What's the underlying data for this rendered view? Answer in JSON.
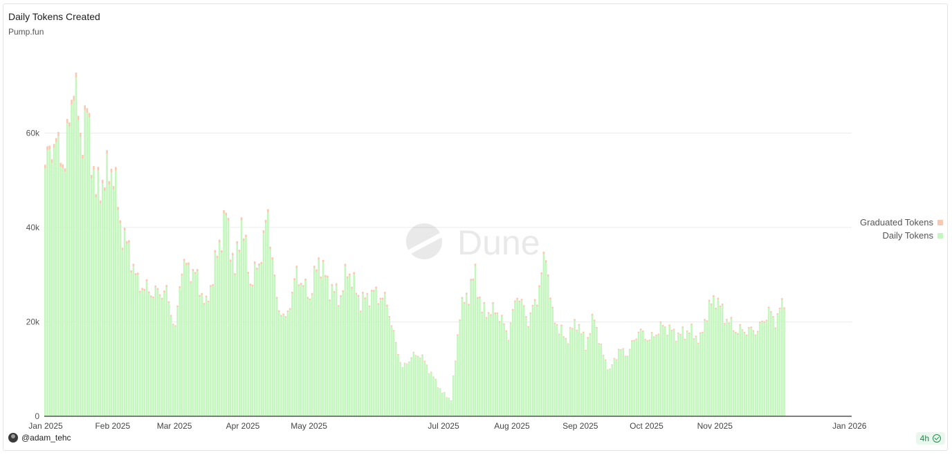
{
  "chart": {
    "title": "Daily Tokens Created",
    "subtitle": "Pump.fun",
    "watermark": "Dune"
  },
  "footer": {
    "author": "@adam_tehc",
    "refresh_label": "4h"
  },
  "colors": {
    "daily": "#c3f7bd",
    "graduated": "#f7c9b0",
    "grid": "#ececec",
    "axis": "#333333"
  },
  "chart_data": {
    "type": "bar",
    "stacked": true,
    "x_labels": [
      "Jan 2025",
      "Feb 2025",
      "Mar 2025",
      "Apr 2025",
      "May 2025",
      "Jul 2025",
      "Aug 2025",
      "Sep 2025",
      "Oct 2025",
      "Nov 2025",
      "Jan 2026"
    ],
    "y_ticks": [
      "0",
      "20k",
      "40k",
      "60k"
    ],
    "ylim": [
      0,
      75000
    ],
    "grid": true,
    "legend_position": "right",
    "series": [
      {
        "name": "Graduated Tokens",
        "color": "#f7c9b0",
        "values_description": "approx. 1-2% of daily tokens"
      },
      {
        "name": "Daily Tokens",
        "color": "#c3f7bd"
      }
    ],
    "anchor_points": [
      [
        "2025-01-01",
        52500
      ],
      [
        "2025-01-05",
        58000
      ],
      [
        "2025-01-10",
        53000
      ],
      [
        "2025-01-14",
        71500
      ],
      [
        "2025-01-17",
        58000
      ],
      [
        "2025-01-20",
        64000
      ],
      [
        "2025-01-24",
        47000
      ],
      [
        "2025-01-28",
        50000
      ],
      [
        "2025-02-01",
        52000
      ],
      [
        "2025-02-04",
        40000
      ],
      [
        "2025-02-08",
        35000
      ],
      [
        "2025-02-12",
        28000
      ],
      [
        "2025-02-18",
        26000
      ],
      [
        "2025-02-25",
        26000
      ],
      [
        "2025-03-01",
        18000
      ],
      [
        "2025-03-04",
        32000
      ],
      [
        "2025-03-10",
        30000
      ],
      [
        "2025-03-15",
        23000
      ],
      [
        "2025-03-20",
        34000
      ],
      [
        "2025-03-24",
        42500
      ],
      [
        "2025-03-28",
        30000
      ],
      [
        "2025-03-31",
        41500
      ],
      [
        "2025-04-04",
        28000
      ],
      [
        "2025-04-08",
        32000
      ],
      [
        "2025-04-12",
        42500
      ],
      [
        "2025-04-16",
        24000
      ],
      [
        "2025-04-20",
        20000
      ],
      [
        "2025-04-25",
        30000
      ],
      [
        "2025-05-01",
        25000
      ],
      [
        "2025-05-05",
        33000
      ],
      [
        "2025-05-10",
        27000
      ],
      [
        "2025-05-15",
        25000
      ],
      [
        "2025-05-18",
        31000
      ],
      [
        "2025-05-24",
        24000
      ],
      [
        "2025-05-30",
        26000
      ],
      [
        "2025-06-05",
        24000
      ],
      [
        "2025-06-08",
        17000
      ],
      [
        "2025-06-12",
        10000
      ],
      [
        "2025-06-16",
        12500
      ],
      [
        "2025-06-20",
        13000
      ],
      [
        "2025-06-25",
        9000
      ],
      [
        "2025-06-30",
        5000
      ],
      [
        "2025-07-04",
        3500
      ],
      [
        "2025-07-06",
        12000
      ],
      [
        "2025-07-08",
        22000
      ],
      [
        "2025-07-12",
        26000
      ],
      [
        "2025-07-15",
        30000
      ],
      [
        "2025-07-18",
        22000
      ],
      [
        "2025-07-25",
        22000
      ],
      [
        "2025-07-30",
        17000
      ],
      [
        "2025-08-03",
        26000
      ],
      [
        "2025-08-08",
        20000
      ],
      [
        "2025-08-12",
        25000
      ],
      [
        "2025-08-16",
        34500
      ],
      [
        "2025-08-19",
        21000
      ],
      [
        "2025-08-25",
        16000
      ],
      [
        "2025-08-30",
        20000
      ],
      [
        "2025-09-03",
        15000
      ],
      [
        "2025-09-07",
        21000
      ],
      [
        "2025-09-10",
        14000
      ],
      [
        "2025-09-14",
        9500
      ],
      [
        "2025-09-18",
        14000
      ],
      [
        "2025-09-22",
        13000
      ],
      [
        "2025-09-27",
        18000
      ],
      [
        "2025-10-02",
        16000
      ],
      [
        "2025-10-08",
        19000
      ],
      [
        "2025-10-15",
        17000
      ],
      [
        "2025-10-20",
        18000
      ],
      [
        "2025-10-25",
        16000
      ],
      [
        "2025-10-28",
        22000
      ],
      [
        "2025-11-01",
        25000
      ],
      [
        "2025-11-05",
        21000
      ],
      [
        "2025-11-10",
        18000
      ],
      [
        "2025-11-15",
        18000
      ],
      [
        "2025-11-20",
        18000
      ],
      [
        "2025-11-25",
        22000
      ],
      [
        "2025-11-28",
        20000
      ],
      [
        "2025-12-02",
        24500
      ]
    ]
  }
}
